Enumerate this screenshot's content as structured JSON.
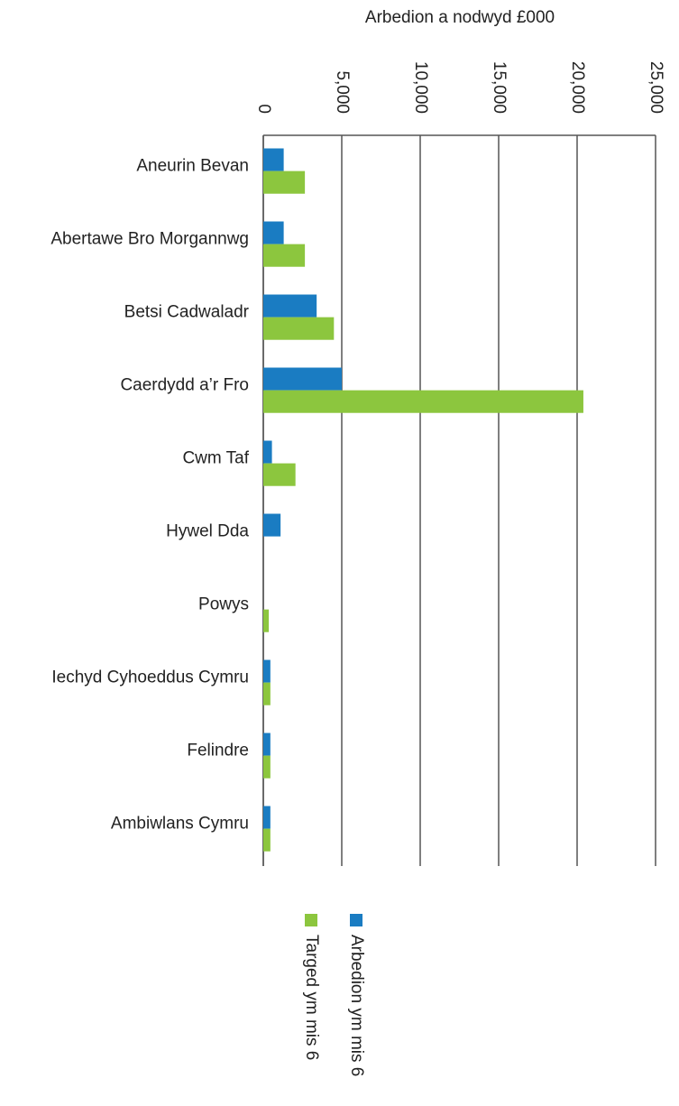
{
  "chart_data": {
    "type": "bar",
    "orientation": "horizontal",
    "title": "Arbedion a nodwyd £000",
    "categories": [
      "Aneurin Bevan",
      "Abertawe Bro Morgannwg",
      "Betsi Cadwaladr",
      "Caerdydd a’r Fro",
      "Cwm Taf",
      "Hywel Dda",
      "Powys",
      "Iechyd Cyhoeddus Cymru",
      "Felindre",
      "Ambiwlans Cymru"
    ],
    "series": [
      {
        "name": "Arbedion ym mis 6",
        "color": "#1a7cc2",
        "values": [
          1300,
          1300,
          3400,
          5000,
          550,
          1100,
          0,
          450,
          450,
          450
        ]
      },
      {
        "name": "Targed ym mis 6",
        "color": "#8cc63e",
        "values": [
          2650,
          2650,
          4500,
          20400,
          2050,
          0,
          350,
          450,
          450,
          450
        ]
      }
    ],
    "xlim": [
      0,
      25000
    ],
    "xticks": [
      0,
      {
        "value": 5000,
        "label": "5,000"
      },
      {
        "value": 10000,
        "label": "10,000"
      },
      {
        "value": 15000,
        "label": "15,000"
      },
      {
        "value": 20000,
        "label": "20,000"
      },
      {
        "value": 25000,
        "label": "25,000"
      }
    ],
    "grid": true
  }
}
